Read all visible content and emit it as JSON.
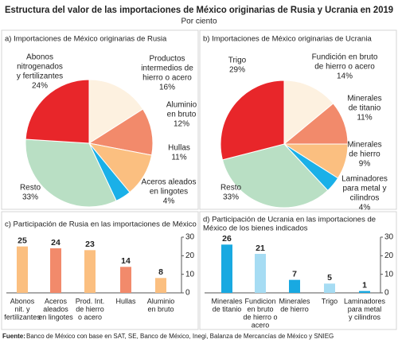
{
  "title": "Estructura del valor de las importaciones de México originarias de Rusia y Ucrania en 2019",
  "subtitle": "Por ciento",
  "source_label": "Fuente:",
  "source": "Banco de México con base en SAT, SE, Banco de México, Inegi, Balanza de Mercancías de México y SNIEG",
  "chart_data": [
    {
      "type": "pie",
      "title": "a) Importaciones de México originarias de Rusia",
      "categories": [
        [
          "Productos",
          "intermedios de",
          "hierro o acero"
        ],
        [
          "Aluminio",
          "en bruto"
        ],
        [
          "Hullas"
        ],
        [
          "Aceros aleados",
          "en lingotes"
        ],
        [
          "Resto"
        ],
        [
          "Abonos",
          "nitrogenados",
          "y fertilizantes"
        ]
      ],
      "values": [
        16,
        12,
        11,
        4,
        33,
        24
      ],
      "value_labels": [
        "16%",
        "12%",
        "11%",
        "4%",
        "33%",
        "24%"
      ],
      "colors": [
        "#fdf1e0",
        "#f28a6b",
        "#fbbf80",
        "#1ab0e8",
        "#b9dfc4",
        "#e8262a"
      ]
    },
    {
      "type": "pie",
      "title": "b) Importaciones de México originarias de Ucrania",
      "categories": [
        [
          "Fundición en bruto",
          "de hierro o acero"
        ],
        [
          "Minerales",
          "de titanio"
        ],
        [
          "Minerales",
          "de hierro"
        ],
        [
          "Laminadores",
          "para metal y",
          "cilindros"
        ],
        [
          "Resto"
        ],
        [
          "Trigo"
        ]
      ],
      "values": [
        14,
        11,
        9,
        4,
        33,
        29
      ],
      "value_labels": [
        "14%",
        "11%",
        "9%",
        "4%",
        "33%",
        "29%"
      ],
      "colors": [
        "#fdf1e0",
        "#f28a6b",
        "#fbbf80",
        "#1ab0e8",
        "#b9dfc4",
        "#e8262a"
      ]
    },
    {
      "type": "bar",
      "title": "c) Participación de Rusia en las importaciones de México",
      "categories": [
        [
          "Abonos",
          "nit. y",
          "fertilizantes"
        ],
        [
          "Aceros",
          "aleados",
          "en lingotes"
        ],
        [
          "Prod. Int.",
          "de hierro",
          "o acero"
        ],
        [
          "Hullas"
        ],
        [
          "Aluminio",
          "en bruto"
        ]
      ],
      "values": [
        25,
        24,
        23,
        14,
        8
      ],
      "colors": [
        "#fbbf80",
        "#f28a6b",
        "#fbbf80",
        "#f28a6b",
        "#fbbf80"
      ],
      "ylim": [
        0,
        30
      ],
      "yticks": [
        0,
        10,
        20,
        30
      ]
    },
    {
      "type": "bar",
      "title": [
        "d) Participación de Ucrania en las importaciones de",
        "México de los bienes indicados"
      ],
      "categories": [
        [
          "Minerales",
          "de titanio"
        ],
        [
          "Fundicion",
          "en bruto",
          "de hierro o",
          "acero"
        ],
        [
          "Minerales",
          "de hierro"
        ],
        [
          "Trigo"
        ],
        [
          "Laminadores",
          "para metal",
          "y cilindros"
        ]
      ],
      "values": [
        26,
        21,
        7,
        5,
        1
      ],
      "colors": [
        "#19a9e1",
        "#a6dcf3",
        "#19a9e1",
        "#a6dcf3",
        "#19a9e1"
      ],
      "ylim": [
        0,
        30
      ],
      "yticks": [
        0,
        10,
        20,
        30
      ]
    }
  ]
}
